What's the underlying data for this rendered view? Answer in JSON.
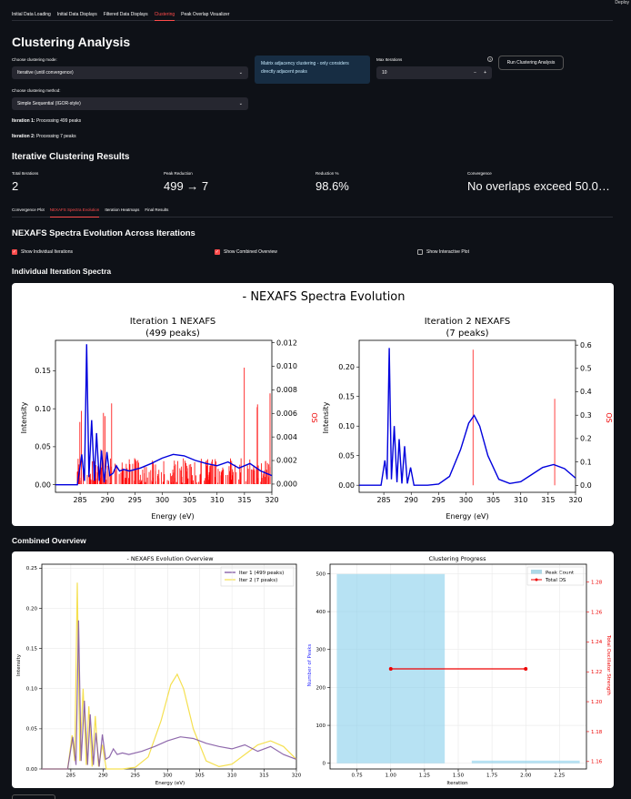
{
  "header": {
    "deploy_label": "Deploy"
  },
  "tabs": [
    {
      "label": "Initial Data Loading"
    },
    {
      "label": "Initial Data Displays"
    },
    {
      "label": "Filtered Data Displays"
    },
    {
      "label": "Clustering"
    },
    {
      "label": "Peak Overlap Visualizer"
    }
  ],
  "page_title": "Clustering Analysis",
  "controls": {
    "mode_label": "Choose clustering mode:",
    "mode_value": "Iterative (until convergence)",
    "method_label": "Choose clustering method:",
    "method_value": "Simple Sequential (IGOR-style)",
    "info_text": "Matrix adjacency clustering - only considers directly adjacent peaks",
    "max_iter_label": "Max Iterations",
    "max_iter_value": "10",
    "help_icon": "?",
    "run_button": "Run Clustering Analysis"
  },
  "progress": [
    {
      "prefix": "Iteration 1:",
      "text": " Processing 499 peaks"
    },
    {
      "prefix": "Iteration 2:",
      "text": " Processing 7 peaks"
    }
  ],
  "results": {
    "heading": "Iterative Clustering Results",
    "metrics": [
      {
        "label": "Total Iterations",
        "value": "2"
      },
      {
        "label": "Peak Reduction",
        "value": "499 → 7"
      },
      {
        "label": "Reduction %",
        "value": "98.6%"
      },
      {
        "label": "Convergence",
        "value": "No overlaps exceed 50.0…"
      }
    ]
  },
  "subtabs": [
    {
      "label": "Convergence Plot"
    },
    {
      "label": "NEXAFS Spectra Evolution"
    },
    {
      "label": "Iteration Heatmaps"
    },
    {
      "label": "Final Results"
    }
  ],
  "evolution": {
    "heading": "NEXAFS Spectra Evolution Across Iterations",
    "checkboxes": [
      {
        "label": "Show Individual Iterations",
        "checked": true
      },
      {
        "label": "Show Combined Overview",
        "checked": true
      },
      {
        "label": "Show Interactive Plot",
        "checked": false
      }
    ],
    "individual_heading": "Individual Iteration Spectra",
    "combined_heading": "Combined Overview"
  },
  "figure1": {
    "suptitle": "- NEXAFS Spectra Evolution",
    "panels": [
      {
        "title1": "Iteration 1 NEXAFS",
        "title2": "(499 peaks)"
      },
      {
        "title1": "Iteration 2 NEXAFS",
        "title2": "(7 peaks)"
      }
    ],
    "xlabel": "Energy (eV)",
    "ylabel": "Intensity",
    "y2label": "OS",
    "xticks": [
      "285",
      "290",
      "295",
      "300",
      "305",
      "310",
      "315",
      "320"
    ],
    "p1_yticks": [
      "0.00",
      "0.05",
      "0.10",
      "0.15"
    ],
    "p1_y2ticks": [
      "0.000",
      "0.002",
      "0.004",
      "0.006",
      "0.008",
      "0.010",
      "0.012"
    ],
    "p2_yticks": [
      "0.00",
      "0.05",
      "0.10",
      "0.15",
      "0.20"
    ],
    "p2_y2ticks": [
      "0.0",
      "0.1",
      "0.2",
      "0.3",
      "0.4",
      "0.5",
      "0.6"
    ]
  },
  "figure2": {
    "left_title": "- NEXAFS Evolution Overview",
    "right_title": "Clustering Progress",
    "left_xlabel": "Energy (eV)",
    "left_ylabel": "Intensity",
    "right_xlabel": "Iteration",
    "right_ylabel": "Number of Peaks",
    "right_y2label": "Total Oscillator Strength",
    "left_xticks": [
      "285",
      "290",
      "295",
      "300",
      "305",
      "310",
      "315",
      "320"
    ],
    "left_yticks": [
      "0.00",
      "0.05",
      "0.10",
      "0.15",
      "0.20",
      "0.25"
    ],
    "right_xticks": [
      "0.75",
      "1.00",
      "1.25",
      "1.50",
      "1.75",
      "2.00",
      "2.25"
    ],
    "right_yticks": [
      "0",
      "100",
      "200",
      "300",
      "400",
      "500"
    ],
    "right_y2ticks": [
      "1.16",
      "1.18",
      "1.20",
      "1.22",
      "1.24",
      "1.26",
      "1.28"
    ],
    "legend_left": [
      "Iter 1 (499 peaks)",
      "Iter 2 (7 peaks)"
    ],
    "legend_right": [
      "Peak Count",
      "Total OS"
    ]
  },
  "chart_data": [
    {
      "type": "line",
      "title": "Iteration 1 NEXAFS (499 peaks)",
      "xlabel": "Energy (eV)",
      "ylabel": "Intensity",
      "y2label": "OS",
      "xlim": [
        280.5,
        320
      ],
      "ylim": [
        -0.01,
        0.19
      ],
      "y2lim": [
        -0.0007,
        0.0122
      ],
      "series": [
        {
          "x": [
            280.5,
            284.5,
            285.3,
            285.8,
            286.2,
            286.6,
            287.1,
            287.6,
            288.0,
            288.5,
            288.9,
            289.4,
            289.9,
            290.4,
            291.0,
            291.6,
            292.2,
            293.0,
            294.0,
            296.0,
            298.0,
            300.0,
            302.0,
            304.0,
            306.0,
            308.0,
            310.0,
            312.0,
            314.0,
            316.0,
            318.0,
            320.0
          ],
          "values": [
            0,
            0,
            0.04,
            0.005,
            0.185,
            0.01,
            0.085,
            0.005,
            0.068,
            0.005,
            0.045,
            0.003,
            0.043,
            0.012,
            0.015,
            0.025,
            0.018,
            0.02,
            0.018,
            0.022,
            0.028,
            0.035,
            0.04,
            0.038,
            0.032,
            0.028,
            0.025,
            0.03,
            0.022,
            0.028,
            0.018,
            0.012
          ]
        }
      ]
    },
    {
      "type": "line",
      "title": "Iteration 2 NEXAFS (7 peaks)",
      "xlabel": "Energy (eV)",
      "ylabel": "Intensity",
      "y2label": "OS",
      "xlim": [
        280.5,
        320
      ],
      "ylim": [
        -0.012,
        0.245
      ],
      "y2lim": [
        -0.03,
        0.62
      ],
      "series": [
        {
          "x": [
            280.5,
            284.5,
            285.2,
            285.6,
            286.0,
            286.4,
            286.9,
            287.4,
            287.8,
            288.3,
            288.8,
            289.3,
            289.9,
            290.5,
            291.5,
            293.0,
            295.0,
            297.0,
            299.0,
            300.5,
            301.5,
            302.5,
            304.0,
            306.0,
            308.0,
            310.0,
            312.0,
            314.0,
            316.0,
            318.0,
            320.0
          ],
          "values": [
            0,
            0,
            0.042,
            0.01,
            0.232,
            0.01,
            0.1,
            0.005,
            0.078,
            0.003,
            0.066,
            0.003,
            0.03,
            0.0,
            0.0,
            0.0,
            0.002,
            0.015,
            0.06,
            0.105,
            0.118,
            0.1,
            0.05,
            0.01,
            0.003,
            0.006,
            0.018,
            0.03,
            0.035,
            0.028,
            0.012
          ]
        }
      ],
      "os_sticks": [
        {
          "x": 301.3,
          "os": 0.58
        },
        {
          "x": 316.2,
          "os": 0.37
        }
      ]
    },
    {
      "type": "line",
      "title": "- NEXAFS Evolution Overview",
      "xlabel": "Energy (eV)",
      "ylabel": "Intensity",
      "xlim": [
        280.5,
        320
      ],
      "ylim": [
        0,
        0.255
      ],
      "series": [
        {
          "name": "Iter 1 (499 peaks)",
          "x": [
            280.5,
            284.5,
            285.3,
            285.8,
            286.2,
            286.6,
            287.1,
            287.6,
            288.0,
            288.5,
            288.9,
            289.4,
            289.9,
            290.4,
            291.0,
            291.6,
            292.2,
            293.0,
            294.0,
            296.0,
            298.0,
            300.0,
            302.0,
            304.0,
            306.0,
            308.0,
            310.0,
            312.0,
            314.0,
            316.0,
            318.0,
            320.0
          ],
          "values": [
            0,
            0,
            0.04,
            0.005,
            0.185,
            0.01,
            0.085,
            0.005,
            0.068,
            0.005,
            0.045,
            0.003,
            0.043,
            0.012,
            0.015,
            0.025,
            0.018,
            0.02,
            0.018,
            0.022,
            0.028,
            0.035,
            0.04,
            0.038,
            0.032,
            0.028,
            0.025,
            0.03,
            0.022,
            0.028,
            0.018,
            0.012
          ]
        },
        {
          "name": "Iter 2 (7 peaks)",
          "x": [
            280.5,
            284.5,
            285.2,
            285.6,
            286.0,
            286.4,
            286.9,
            287.4,
            287.8,
            288.3,
            288.8,
            289.3,
            289.9,
            290.5,
            291.5,
            293.0,
            295.0,
            297.0,
            299.0,
            300.5,
            301.5,
            302.5,
            304.0,
            306.0,
            308.0,
            310.0,
            312.0,
            314.0,
            316.0,
            318.0,
            320.0
          ],
          "values": [
            0,
            0,
            0.042,
            0.01,
            0.232,
            0.01,
            0.1,
            0.005,
            0.078,
            0.003,
            0.066,
            0.003,
            0.03,
            0.0,
            0.0,
            0.0,
            0.002,
            0.015,
            0.06,
            0.105,
            0.118,
            0.1,
            0.05,
            0.01,
            0.003,
            0.006,
            0.018,
            0.03,
            0.035,
            0.028,
            0.012
          ]
        }
      ]
    },
    {
      "type": "bar",
      "title": "Clustering Progress",
      "xlabel": "Iteration",
      "ylabel": "Number of Peaks",
      "y2label": "Total Oscillator Strength",
      "xlim": [
        0.55,
        2.45
      ],
      "ylim": [
        -15,
        525
      ],
      "y2lim": [
        1.155,
        1.292
      ],
      "categories": [
        1,
        2
      ],
      "series": [
        {
          "name": "Peak Count",
          "values": [
            499,
            7
          ]
        },
        {
          "name": "Total OS",
          "values": [
            1.222,
            1.222
          ]
        }
      ]
    }
  ]
}
